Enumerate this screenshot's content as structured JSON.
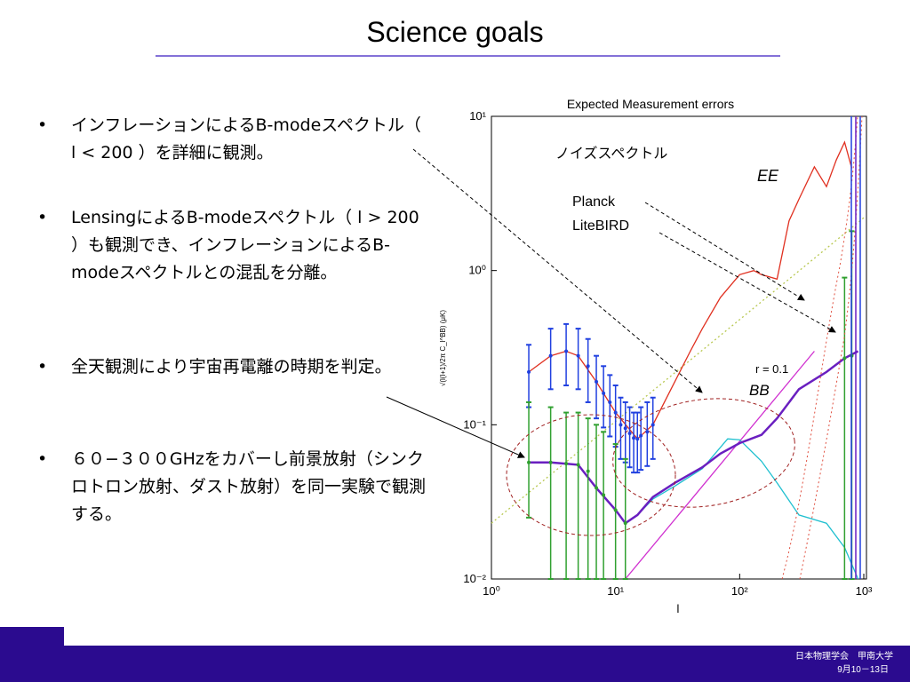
{
  "header": {
    "title": "Science goals"
  },
  "bullets": [
    "インフレーションによるB-modeスペクトル（ l < 200 ）を詳細に観測。",
    "LensingによるB-modeスペクトル（ l > 200 ）も観測でき、インフレーションによるB-modeスペクトルとの混乱を分離。",
    "全天観測により宇宙再電離の時期を判定。",
    "６０−３００GHzをカバーし前景放射（シンクロトロン放射、ダスト放射）を同一実験で観測する。"
  ],
  "chart_data": {
    "type": "line",
    "title": "Expected Measurement errors",
    "x_label": "l",
    "y_label": "√(l(l+1)/2π C_l^BB) (μK)",
    "log_x": true,
    "log_y": true,
    "xlim": [
      1,
      1000
    ],
    "ylim": [
      0.01,
      10
    ],
    "xticks": [
      {
        "value": 1,
        "label": "10⁰"
      },
      {
        "value": 10,
        "label": "10¹"
      },
      {
        "value": 100,
        "label": "10²"
      },
      {
        "value": 1000,
        "label": "10³"
      }
    ],
    "yticks": [
      {
        "value": 0.01,
        "label": "10⁻²"
      },
      {
        "value": 0.1,
        "label": "10⁻¹"
      },
      {
        "value": 1,
        "label": "10⁰"
      },
      {
        "value": 10,
        "label": "10¹"
      }
    ],
    "annotations": [
      "ノイズスペクトル",
      "Planck",
      "LiteBIRD",
      "EE",
      "r = 0.1",
      "BB"
    ],
    "curves": [
      {
        "color": "#b8c850",
        "dash": true,
        "x": [
          1,
          1000
        ],
        "values": [
          0.023,
          2.2
        ]
      },
      {
        "color": "#d030d0",
        "x": [
          12,
          400
        ],
        "values": [
          0.01,
          0.3
        ]
      },
      {
        "color": "#20c0d0",
        "x": [
          2,
          3,
          5,
          7,
          10,
          12,
          15,
          20,
          30,
          50,
          80,
          100,
          150,
          200,
          300,
          500,
          700,
          900
        ],
        "values": [
          0.057,
          0.057,
          0.055,
          0.039,
          0.028,
          0.023,
          0.026,
          0.033,
          0.04,
          0.052,
          0.081,
          0.08,
          0.058,
          0.042,
          0.026,
          0.023,
          0.016,
          0.01
        ]
      },
      {
        "color": "#6a1fc0",
        "width": 2.5,
        "x": [
          2,
          3,
          5,
          7,
          10,
          12,
          15,
          20,
          30,
          50,
          70,
          100,
          150,
          200,
          300,
          500,
          700,
          900
        ],
        "values": [
          0.057,
          0.057,
          0.055,
          0.039,
          0.028,
          0.023,
          0.026,
          0.034,
          0.042,
          0.053,
          0.065,
          0.076,
          0.086,
          0.11,
          0.17,
          0.22,
          0.27,
          0.3
        ]
      },
      {
        "color": "#e03020",
        "x": [
          2,
          3,
          4,
          5,
          7,
          10,
          15,
          20,
          30,
          40,
          50,
          70,
          100,
          130,
          150,
          200,
          250,
          300,
          400,
          500,
          600,
          700,
          800
        ],
        "values": [
          0.22,
          0.28,
          0.3,
          0.28,
          0.19,
          0.12,
          0.081,
          0.1,
          0.19,
          0.3,
          0.42,
          0.67,
          0.94,
          1.0,
          0.94,
          0.88,
          2.1,
          2.9,
          4.7,
          3.5,
          5.2,
          6.8,
          4.6
        ]
      }
    ],
    "error_bars": [
      {
        "color": "#2040e0",
        "x": [
          2,
          3,
          4,
          5,
          6,
          7,
          8,
          9,
          10,
          11,
          12,
          13,
          14,
          15,
          16,
          18,
          20
        ],
        "values": [
          0.22,
          0.28,
          0.3,
          0.28,
          0.24,
          0.19,
          0.16,
          0.14,
          0.12,
          0.1,
          0.095,
          0.088,
          0.082,
          0.081,
          0.085,
          0.09,
          0.1
        ],
        "lower": [
          0.13,
          0.17,
          0.18,
          0.17,
          0.14,
          0.11,
          0.096,
          0.084,
          0.072,
          0.06,
          0.057,
          0.053,
          0.049,
          0.049,
          0.051,
          0.054,
          0.06
        ],
        "upper": [
          0.33,
          0.42,
          0.45,
          0.42,
          0.36,
          0.28,
          0.24,
          0.21,
          0.18,
          0.15,
          0.14,
          0.13,
          0.12,
          0.12,
          0.13,
          0.14,
          0.15
        ]
      },
      {
        "color": "#30a030",
        "x": [
          2,
          3,
          4,
          5,
          6,
          7,
          8,
          10,
          12,
          700,
          800
        ],
        "values": [
          0.057,
          0.057,
          0.056,
          0.055,
          0.05,
          0.039,
          0.035,
          0.028,
          0.023,
          0.27,
          0.28
        ],
        "lower": [
          0.025,
          0.01,
          0.01,
          0.01,
          0.01,
          0.01,
          0.01,
          0.01,
          0.01,
          0.01,
          0.01
        ],
        "upper": [
          0.14,
          0.13,
          0.12,
          0.12,
          0.11,
          0.1,
          0.09,
          0.075,
          0.06,
          0.9,
          1.8
        ]
      }
    ]
  },
  "footer": {
    "society": "日本物理学会　甲南大学",
    "date": "9月10－13日"
  }
}
